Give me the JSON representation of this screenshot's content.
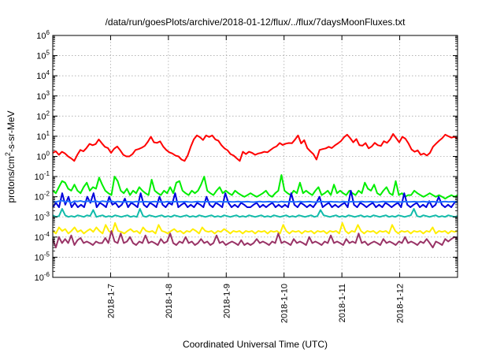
{
  "chart_data": {
    "type": "line",
    "title": "/data/run/goesPlots/archive/2018-01-12/flux/../flux/7daysMoonFluxes.txt",
    "xlabel": "Coordinated Universal Time (UTC)",
    "ylabel_parts": {
      "prefix": "protons/cm",
      "superscript": "2",
      "suffix": "-s-sr-MeV"
    },
    "y_scale": "log",
    "ylim": [
      1e-06,
      1000000.0
    ],
    "y_ticks": [
      {
        "base": "10",
        "exp": "-6",
        "value": 1e-06
      },
      {
        "base": "10",
        "exp": "-5",
        "value": 1e-05
      },
      {
        "base": "10",
        "exp": "-4",
        "value": 0.0001
      },
      {
        "base": "10",
        "exp": "-3",
        "value": 0.001
      },
      {
        "base": "10",
        "exp": "-2",
        "value": 0.01
      },
      {
        "base": "10",
        "exp": "-1",
        "value": 0.1
      },
      {
        "base": "10",
        "exp": "0",
        "value": 1.0
      },
      {
        "base": "10",
        "exp": "1",
        "value": 10.0
      },
      {
        "base": "10",
        "exp": "2",
        "value": 100.0
      },
      {
        "base": "10",
        "exp": "3",
        "value": 1000.0
      },
      {
        "base": "10",
        "exp": "4",
        "value": 10000.0
      },
      {
        "base": "10",
        "exp": "5",
        "value": 100000.0
      },
      {
        "base": "10",
        "exp": "6",
        "value": 1000000.0
      }
    ],
    "xlim": [
      "2018-01-06 00:00",
      "2018-01-13 00:00"
    ],
    "x_ticks": [
      "2018-1-7",
      "2018-1-8",
      "2018-1-9",
      "2018-1-10",
      "2018-1-11",
      "2018-1-12"
    ],
    "grid": true,
    "legend": "none",
    "series": [
      {
        "color": "#ff0000",
        "values": [
          1.5,
          1.8,
          1.2,
          1.7,
          1.4,
          1.0,
          0.8,
          0.6,
          1.2,
          2.1,
          1.8,
          2.6,
          4.2,
          3.6,
          4.1,
          7.0,
          4.5,
          3.0,
          2.6,
          1.5,
          2.4,
          3.1,
          2.0,
          1.2,
          1.0,
          1.0,
          1.3,
          2.1,
          2.3,
          2.7,
          3.3,
          5.3,
          9.5,
          5.0,
          4.7,
          5.6,
          3.1,
          2.1,
          1.6,
          1.4,
          1.1,
          1.0,
          0.7,
          0.6,
          1.1,
          3.0,
          7.0,
          11,
          9.0,
          6.5,
          11,
          9.2,
          11,
          7.0,
          6.0,
          3.6,
          2.5,
          2.0,
          1.3,
          1.1,
          0.8,
          0.6,
          1.7,
          1.3,
          1.7,
          1.5,
          1.2,
          1.4,
          1.5,
          1.7,
          1.6,
          2.1,
          2.7,
          3.2,
          4.6,
          3.7,
          4.3,
          4.6,
          4.5,
          6.8,
          11,
          4.4,
          6.4,
          2.6,
          1.8,
          1.3,
          0.7,
          2.1,
          2.3,
          2.5,
          3.0,
          2.6,
          3.5,
          4.4,
          5.8,
          9.0,
          12,
          8.0,
          5.0,
          7.3,
          3.6,
          3.4,
          4.6,
          2.5,
          3.1,
          4.7,
          3.6,
          3.3,
          5.7,
          4.7,
          6.9,
          13,
          8.1,
          5.0,
          9.4,
          7.6,
          4.4,
          2.2,
          1.7,
          2.0,
          1.2,
          1.4,
          1.1,
          1.5,
          3.0,
          4.3,
          6.0,
          8.0,
          12,
          10,
          8.5,
          9.4,
          7.5
        ]
      },
      {
        "color": "#00ee00",
        "values": [
          0.02,
          0.015,
          0.03,
          0.06,
          0.05,
          0.025,
          0.02,
          0.04,
          0.02,
          0.015,
          0.03,
          0.05,
          0.02,
          0.03,
          0.025,
          0.09,
          0.04,
          0.02,
          0.015,
          0.012,
          0.1,
          0.06,
          0.02,
          0.015,
          0.025,
          0.012,
          0.02,
          0.015,
          0.03,
          0.02,
          0.015,
          0.012,
          0.07,
          0.02,
          0.015,
          0.012,
          0.02,
          0.015,
          0.03,
          0.015,
          0.05,
          0.06,
          0.02,
          0.015,
          0.012,
          0.02,
          0.015,
          0.02,
          0.04,
          0.1,
          0.02,
          0.015,
          0.012,
          0.02,
          0.03,
          0.015,
          0.02,
          0.015,
          0.012,
          0.02,
          0.015,
          0.012,
          0.01,
          0.012,
          0.015,
          0.012,
          0.01,
          0.012,
          0.015,
          0.02,
          0.012,
          0.01,
          0.015,
          0.02,
          0.12,
          0.02,
          0.015,
          0.012,
          0.02,
          0.015,
          0.05,
          0.015,
          0.02,
          0.015,
          0.012,
          0.02,
          0.03,
          0.012,
          0.015,
          0.02,
          0.012,
          0.04,
          0.015,
          0.02,
          0.015,
          0.012,
          0.02,
          0.015,
          0.012,
          0.02,
          0.015,
          0.05,
          0.025,
          0.02,
          0.04,
          0.015,
          0.012,
          0.02,
          0.03,
          0.015,
          0.012,
          0.06,
          0.012,
          0.015,
          0.01,
          0.012,
          0.012,
          0.02,
          0.015,
          0.012,
          0.01,
          0.012,
          0.015,
          0.012,
          0.01,
          0.012,
          0.01,
          0.008,
          0.01,
          0.012,
          0.01,
          0.012
        ]
      },
      {
        "color": "#0000dd",
        "values": [
          0.003,
          0.005,
          0.003,
          0.015,
          0.004,
          0.01,
          0.003,
          0.005,
          0.003,
          0.004,
          0.003,
          0.01,
          0.005,
          0.015,
          0.003,
          0.005,
          0.004,
          0.003,
          0.01,
          0.004,
          0.005,
          0.003,
          0.004,
          0.008,
          0.003,
          0.005,
          0.004,
          0.003,
          0.015,
          0.004,
          0.003,
          0.005,
          0.004,
          0.003,
          0.01,
          0.004,
          0.003,
          0.005,
          0.004,
          0.015,
          0.003,
          0.004,
          0.005,
          0.003,
          0.004,
          0.003,
          0.005,
          0.004,
          0.003,
          0.01,
          0.004,
          0.003,
          0.005,
          0.004,
          0.003,
          0.015,
          0.005,
          0.003,
          0.004,
          0.003,
          0.005,
          0.004,
          0.003,
          0.003,
          0.004,
          0.005,
          0.003,
          0.004,
          0.003,
          0.004,
          0.005,
          0.003,
          0.004,
          0.003,
          0.004,
          0.003,
          0.015,
          0.004,
          0.003,
          0.005,
          0.004,
          0.003,
          0.004,
          0.003,
          0.005,
          0.01,
          0.003,
          0.004,
          0.005,
          0.003,
          0.004,
          0.003,
          0.004,
          0.005,
          0.003,
          0.02,
          0.004,
          0.003,
          0.005,
          0.004,
          0.003,
          0.004,
          0.005,
          0.003,
          0.004,
          0.003,
          0.005,
          0.004,
          0.003,
          0.004,
          0.005,
          0.003,
          0.015,
          0.004,
          0.003,
          0.004,
          0.005,
          0.003,
          0.004,
          0.003,
          0.006,
          0.003,
          0.004,
          0.01,
          0.004,
          0.003,
          0.004,
          0.003,
          0.005,
          0.006
        ]
      },
      {
        "color": "#1e6fff",
        "values": [
          0.006,
          0.0055,
          0.006,
          0.0065,
          0.0055,
          0.006,
          0.005,
          0.006,
          0.0058,
          0.0062,
          0.0056,
          0.006,
          0.0059,
          0.0057,
          0.006,
          0.0055,
          0.006,
          0.0058,
          0.0056,
          0.006,
          0.0054,
          0.0058,
          0.0056,
          0.0055,
          0.0057,
          0.0056,
          0.0054,
          0.0058,
          0.0055,
          0.0056,
          0.0057,
          0.0055,
          0.0056,
          0.0058,
          0.0055,
          0.0056,
          0.0054,
          0.0057,
          0.0055,
          0.0056,
          0.0058,
          0.0055,
          0.0056,
          0.0057,
          0.0055,
          0.0054,
          0.0056,
          0.0058,
          0.0055,
          0.0056,
          0.0057,
          0.0055,
          0.0056,
          0.0054,
          0.0058,
          0.0055,
          0.0056,
          0.0057,
          0.0055,
          0.0056,
          0.0058,
          0.0055,
          0.0056,
          0.0057,
          0.0055,
          0.0054,
          0.0056,
          0.0058,
          0.0055,
          0.0056,
          0.0057,
          0.0055,
          0.0056,
          0.0054,
          0.0058,
          0.0055,
          0.0056,
          0.0057,
          0.0055,
          0.0056,
          0.0058,
          0.0055,
          0.0056,
          0.0057,
          0.0055,
          0.0054,
          0.0056,
          0.0058,
          0.0055,
          0.0056,
          0.0057,
          0.0055,
          0.0056,
          0.0054,
          0.0058,
          0.0055,
          0.0056,
          0.0057,
          0.0055,
          0.0056,
          0.0058,
          0.0055,
          0.0056,
          0.0057,
          0.0055,
          0.0054,
          0.0056,
          0.0058,
          0.0055,
          0.0056,
          0.0057,
          0.0055,
          0.0056,
          0.0054,
          0.0058,
          0.0055,
          0.0056,
          0.0057,
          0.0055,
          0.0056,
          0.0058,
          0.0055,
          0.0056,
          0.0057,
          0.0055,
          0.0054,
          0.0056,
          0.0058,
          0.0055,
          0.0056,
          0.0057,
          0.0055
        ]
      },
      {
        "color": "#11bbaa",
        "values": [
          0.0012,
          0.001,
          0.0011,
          0.0025,
          0.0012,
          0.001,
          0.0011,
          0.001,
          0.0012,
          0.0011,
          0.001,
          0.0012,
          0.0011,
          0.0022,
          0.001,
          0.0011,
          0.0012,
          0.001,
          0.0011,
          0.001,
          0.0012,
          0.0011,
          0.001,
          0.0011,
          0.0012,
          0.001,
          0.0011,
          0.001,
          0.0025,
          0.0011,
          0.001,
          0.0012,
          0.0011,
          0.001,
          0.0011,
          0.0012,
          0.001,
          0.0011,
          0.001,
          0.0012,
          0.0011,
          0.001,
          0.0011,
          0.0012,
          0.001,
          0.0011,
          0.001,
          0.0012,
          0.0011,
          0.001,
          0.0011,
          0.0012,
          0.001,
          0.0011,
          0.001,
          0.0012,
          0.0011,
          0.001,
          0.0011,
          0.0012,
          0.001,
          0.0011,
          0.001,
          0.0012,
          0.0011,
          0.001,
          0.0011,
          0.0012,
          0.001,
          0.0011,
          0.001,
          0.0012,
          0.0011,
          0.001,
          0.0011,
          0.0012,
          0.001,
          0.0011,
          0.001,
          0.0012,
          0.0011,
          0.001,
          0.0011,
          0.0012,
          0.001,
          0.0011,
          0.0022,
          0.0012,
          0.0011,
          0.001,
          0.0011,
          0.0012,
          0.001,
          0.0011,
          0.001,
          0.0012,
          0.0011,
          0.001,
          0.0011,
          0.0012,
          0.001,
          0.0011,
          0.001,
          0.0012,
          0.0011,
          0.001,
          0.0011,
          0.0012,
          0.001,
          0.0011,
          0.001,
          0.0012,
          0.0011,
          0.001,
          0.0011,
          0.0012,
          0.0025,
          0.0011,
          0.001,
          0.0012,
          0.0011,
          0.001,
          0.0011,
          0.0012,
          0.001,
          0.0011,
          0.001,
          0.0012,
          0.0011,
          0.001,
          0.0011
        ]
      },
      {
        "color": "#ffee00",
        "values": [
          0.0002,
          0.00015,
          0.0003,
          0.0002,
          0.00025,
          0.00015,
          0.0002,
          0.0003,
          0.00018,
          0.00022,
          0.00015,
          0.0002,
          0.00025,
          0.00018,
          0.0003,
          0.0002,
          0.00015,
          0.0004,
          0.0002,
          0.00015,
          0.0005,
          0.0002,
          0.00018,
          0.00015,
          0.0002,
          0.00025,
          0.00018,
          0.0002,
          0.00015,
          0.0003,
          0.0002,
          0.00018,
          0.0002,
          0.00015,
          0.0004,
          0.0002,
          0.00018,
          0.00015,
          0.0002,
          0.00025,
          0.00018,
          0.0002,
          0.00015,
          0.0002,
          0.00018,
          0.00025,
          0.0002,
          0.00015,
          0.0003,
          0.0002,
          0.00018,
          0.0002,
          0.00015,
          0.0002,
          0.00018,
          0.00025,
          0.0002,
          0.00015,
          0.0002,
          0.00018,
          0.0002,
          0.00015,
          0.0002,
          0.00018,
          0.0002,
          0.00015,
          0.0002,
          0.00018,
          0.0002,
          0.00015,
          0.0002,
          0.00018,
          0.0002,
          0.00015,
          0.0004,
          0.0002,
          0.00015,
          0.0002,
          0.00018,
          0.0002,
          0.00015,
          0.0002,
          0.00018,
          0.0002,
          0.00015,
          0.0002,
          0.00018,
          0.0002,
          0.00015,
          0.0002,
          0.00018,
          0.0002,
          0.00015,
          0.0005,
          0.0002,
          0.00015,
          0.0002,
          0.00018,
          0.0004,
          0.0002,
          0.00015,
          0.0002,
          0.00018,
          0.0002,
          0.00015,
          0.0002,
          0.00018,
          0.0002,
          0.00015,
          0.0004,
          0.0002,
          0.00015,
          0.0002,
          0.00018,
          0.0002,
          0.00015,
          0.0002,
          0.00018,
          0.0002,
          0.00015,
          0.0002,
          0.00018,
          0.0003,
          0.00015,
          0.0002,
          0.00018,
          0.0002,
          0.00015,
          0.0002,
          0.00018,
          0.0002
        ]
      },
      {
        "color": "#993366",
        "values": [
          8e-05,
          3e-05,
          0.0001,
          5e-05,
          8e-05,
          5e-05,
          0.00012,
          4e-05,
          7e-05,
          9e-05,
          5e-05,
          6e-05,
          5e-05,
          4e-05,
          6e-05,
          5e-05,
          5e-05,
          9e-05,
          5e-05,
          0.0002,
          6e-05,
          5e-05,
          0.00015,
          5e-05,
          6e-05,
          0.0001,
          5e-05,
          4e-05,
          6e-05,
          5e-05,
          0.00012,
          5e-05,
          6e-05,
          5e-05,
          4e-05,
          8e-05,
          5e-05,
          6e-05,
          0.00015,
          5e-05,
          4e-05,
          6e-05,
          5e-05,
          0.0001,
          5e-05,
          6e-05,
          4e-05,
          5e-05,
          8e-05,
          5e-05,
          6e-05,
          4e-05,
          5e-05,
          0.00012,
          5e-05,
          6e-05,
          4e-05,
          5e-05,
          6e-05,
          5e-05,
          4e-05,
          7e-05,
          4e-05,
          5e-05,
          4e-05,
          5e-05,
          8e-05,
          5e-05,
          6e-05,
          5e-05,
          4e-05,
          6e-05,
          5e-05,
          0.00015,
          5e-05,
          6e-05,
          5e-05,
          4e-05,
          8e-05,
          5e-05,
          6e-05,
          5e-05,
          4e-05,
          0.0001,
          5e-05,
          6e-05,
          5e-05,
          4e-05,
          6e-05,
          5e-05,
          0.00012,
          5e-05,
          6e-05,
          5e-05,
          4e-05,
          8e-05,
          5e-05,
          6e-05,
          5e-05,
          0.00015,
          5e-05,
          6e-05,
          4e-05,
          5e-05,
          6e-05,
          5e-05,
          4e-05,
          8e-05,
          5e-05,
          6e-05,
          5e-05,
          4e-05,
          6e-05,
          5e-05,
          0.0001,
          5e-05,
          6e-05,
          5e-05,
          4e-05,
          6e-05,
          5e-05,
          8e-05,
          5e-05,
          3e-05,
          6e-05,
          5e-05,
          4e-05,
          8e-05,
          6e-05,
          8e-05,
          0.0001,
          8e-05
        ]
      }
    ]
  }
}
